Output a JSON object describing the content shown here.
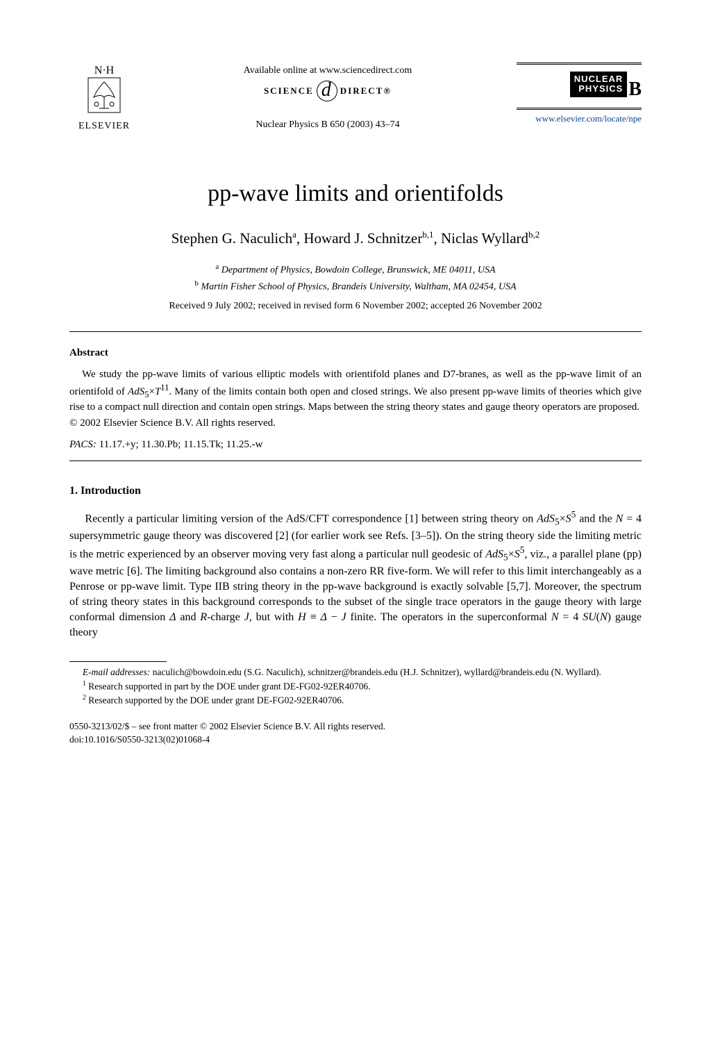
{
  "header": {
    "publisher": "ELSEVIER",
    "available_online": "Available online at www.sciencedirect.com",
    "science_left": "SCIENCE",
    "science_right": "DIRECT®",
    "journal_citation": "Nuclear Physics B 650 (2003) 43–74",
    "badge_line1": "NUCLEAR",
    "badge_line2": "PHYSICS",
    "badge_letter": "B",
    "journal_url": "www.elsevier.com/locate/npe"
  },
  "title": "pp-wave limits and orientifolds",
  "authors": {
    "a1_name": "Stephen G. Naculich",
    "a1_sup": "a",
    "a2_name": "Howard J. Schnitzer",
    "a2_sup": "b,1",
    "a3_name": "Niclas Wyllard",
    "a3_sup": "b,2"
  },
  "affiliations": {
    "a_sup": "a",
    "a_text": "Department of Physics, Bowdoin College, Brunswick, ME 04011, USA",
    "b_sup": "b",
    "b_text": "Martin Fisher School of Physics, Brandeis University, Waltham, MA 02454, USA"
  },
  "received": "Received 9 July 2002; received in revised form 6 November 2002; accepted 26 November 2002",
  "abstract": {
    "heading": "Abstract",
    "body_html": "We study the pp-wave limits of various elliptic models with orientifold planes and D7-branes, as well as the pp-wave limit of an orientifold of <i>AdS</i><sub>5</sub>×<i>T</i><sup>11</sup>. Many of the limits contain both open and closed strings. We also present pp-wave limits of theories which give rise to a compact null direction and contain open strings. Maps between the string theory states and gauge theory operators are proposed.",
    "copyright": "© 2002 Elsevier Science B.V. All rights reserved.",
    "pacs_label": "PACS:",
    "pacs_codes": "11.17.+y; 11.30.Pb; 11.15.Tk; 11.25.-w"
  },
  "section1": {
    "heading": "1.  Introduction",
    "para1_html": "Recently a particular limiting version of the AdS/CFT correspondence [1] between string theory on <i>AdS</i><sub>5</sub>×<i>S</i><sup>5</sup> and the <span class=\"cal\">N</span> = 4 supersymmetric gauge theory was discovered [2] (for earlier work see Refs. [3–5]). On the string theory side the limiting metric is the metric experienced by an observer moving very fast along a particular null geodesic of <i>AdS</i><sub>5</sub>×<i>S</i><sup>5</sup>, viz., a parallel plane (pp) wave metric [6]. The limiting background also contains a non-zero RR five-form. We will refer to this limit interchangeably as a Penrose or pp-wave limit. Type IIB string theory in the pp-wave background is exactly solvable [5,7]. Moreover, the spectrum of string theory states in this background corresponds to the subset of the single trace operators in the gauge theory with large conformal dimension <i>Δ</i> and <i>R</i>-charge <i>J</i>, but with <i>H</i> ≡ <i>Δ</i> − <i>J</i> finite. The operators in the superconformal <span class=\"cal\">N</span> = 4 <i>SU</i>(<i>N</i>) gauge theory"
  },
  "footnotes": {
    "email_label": "E-mail addresses:",
    "email_text": "naculich@bowdoin.edu (S.G. Naculich), schnitzer@brandeis.edu (H.J. Schnitzer), wyllard@brandeis.edu (N. Wyllard).",
    "fn1_sup": "1",
    "fn1_text": "Research supported in part by the DOE under grant DE-FG02-92ER40706.",
    "fn2_sup": "2",
    "fn2_text": "Research supported by the DOE under grant DE-FG02-92ER40706."
  },
  "bottom": {
    "line1": "0550-3213/02/$ – see front matter © 2002 Elsevier Science B.V. All rights reserved.",
    "line2": "doi:10.1016/S0550-3213(02)01068-4"
  },
  "colors": {
    "text": "#000000",
    "link": "#0645ad",
    "background": "#ffffff"
  },
  "typography": {
    "body_font": "Times New Roman",
    "title_size_pt": 26,
    "author_size_pt": 16,
    "body_size_pt": 12,
    "footnote_size_pt": 10
  }
}
